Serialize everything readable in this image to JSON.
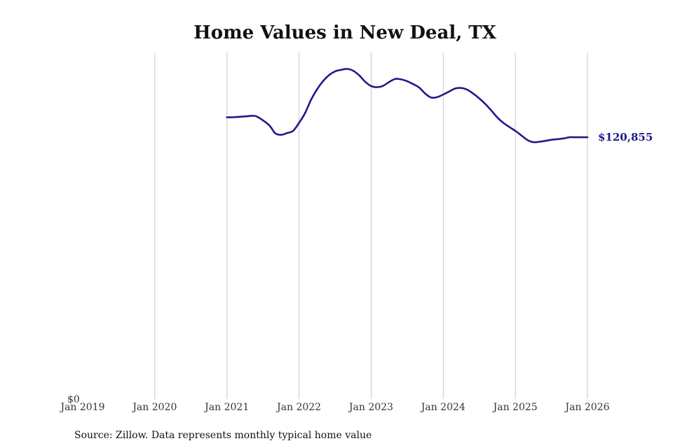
{
  "chart_data": {
    "type": "line",
    "title": "Home Values in New Deal, TX",
    "xlabel": "",
    "ylabel": "",
    "ylim": [
      0,
      160000
    ],
    "grid": {
      "x": true,
      "y": false
    },
    "x_ticks": [
      "Jan 2019",
      "Jan 2020",
      "Jan 2021",
      "Jan 2022",
      "Jan 2023",
      "Jan 2024",
      "Jan 2025",
      "Jan 2026"
    ],
    "y_ticks": [
      "$0"
    ],
    "end_label": "$120,855",
    "colors": {
      "line": "#1f1a8a",
      "grid": "#c8c8c8"
    },
    "series": [
      {
        "x": [
          "2021-01",
          "2021-02",
          "2021-04",
          "2021-05",
          "2021-06",
          "2021-08",
          "2021-09",
          "2021-10",
          "2021-11",
          "2021-12",
          "2022-01",
          "2022-02",
          "2022-03",
          "2022-04",
          "2022-05",
          "2022-06",
          "2022-07",
          "2022-08",
          "2022-09",
          "2022-10",
          "2022-11",
          "2022-12",
          "2023-01",
          "2023-02",
          "2023-03",
          "2023-04",
          "2023-05",
          "2023-06",
          "2023-07",
          "2023-08",
          "2023-09",
          "2023-10",
          "2023-11",
          "2023-12",
          "2024-01",
          "2024-02",
          "2024-03",
          "2024-04",
          "2024-05",
          "2024-06",
          "2024-07",
          "2024-08",
          "2024-09",
          "2024-10",
          "2024-11",
          "2024-12",
          "2025-01",
          "2025-02",
          "2025-03",
          "2025-04",
          "2025-05",
          "2025-06",
          "2025-07",
          "2025-08",
          "2025-09",
          "2025-10",
          "2025-11",
          "2025-12",
          "2026-01"
        ],
        "y": [
          130100,
          130100,
          130500,
          130700,
          130400,
          126500,
          122800,
          122000,
          122800,
          123800,
          127500,
          132000,
          138200,
          143000,
          146800,
          149600,
          151300,
          152000,
          152400,
          151600,
          149500,
          146500,
          144500,
          144000,
          144600,
          146400,
          147800,
          147600,
          146700,
          145400,
          143800,
          141000,
          139200,
          139400,
          140600,
          142000,
          143400,
          143600,
          142800,
          141000,
          138800,
          136200,
          133200,
          130000,
          127500,
          125600,
          123800,
          121700,
          119600,
          118600,
          118800,
          119200,
          119700,
          120000,
          120300,
          120855,
          120855,
          120855,
          120855
        ]
      }
    ],
    "source": "Source: Zillow. Data represents monthly typical home value"
  }
}
